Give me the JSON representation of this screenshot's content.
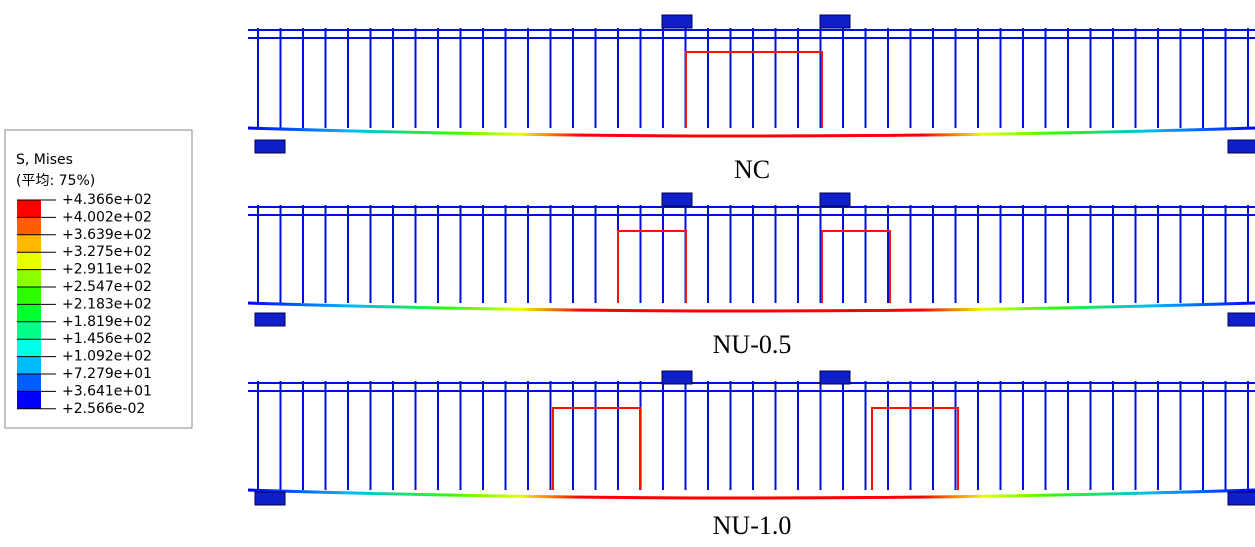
{
  "legend": {
    "title": "S, Mises",
    "subtitle": "(平均: 75%)",
    "levels": [
      "+4.366e+02",
      "+4.002e+02",
      "+3.639e+02",
      "+3.275e+02",
      "+2.911e+02",
      "+2.547e+02",
      "+2.183e+02",
      "+1.819e+02",
      "+1.456e+02",
      "+1.092e+02",
      "+7.279e+01",
      "+3.641e+01",
      "+2.566e-02"
    ]
  },
  "beams": [
    {
      "label": "NC"
    },
    {
      "label": "NU-0.5"
    },
    {
      "label": "NU-1.0"
    }
  ]
}
